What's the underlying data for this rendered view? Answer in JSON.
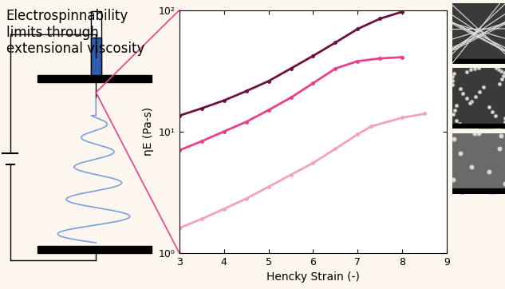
{
  "chart_data": {
    "type": "line",
    "annotation": "Electrospinnability\nlimits through\nextensional viscosity",
    "x_label": "Hencky Strain (-)",
    "y_label": "ηE (Pa-s)",
    "log": "y",
    "xlim": [
      3,
      9
    ],
    "xticks": [
      3,
      4,
      5,
      6,
      7,
      8,
      9
    ],
    "ylim": [
      1,
      100
    ],
    "yticks": [
      {
        "value": 1,
        "label": "10⁰"
      },
      {
        "value": 10,
        "label": "10¹"
      },
      {
        "value": 100,
        "label": "10²"
      }
    ],
    "grid": false,
    "series": [
      {
        "color": "#6b1040",
        "marker": "o",
        "line_style": "solid",
        "x": [
          3.0,
          3.5,
          4.0,
          4.5,
          5.0,
          5.5,
          6.0,
          6.5,
          7.0,
          7.5,
          8.0
        ],
        "values": [
          13.5,
          15.5,
          18,
          21.5,
          26,
          33,
          42,
          54,
          70,
          85,
          97
        ]
      },
      {
        "color": "#e8408a",
        "marker": "o",
        "line_style": "solid",
        "x": [
          3.0,
          3.5,
          4.0,
          4.5,
          5.0,
          5.5,
          6.0,
          6.5,
          7.0,
          7.5,
          8.0
        ],
        "values": [
          7,
          8.3,
          10,
          12,
          15,
          19,
          25,
          33,
          38,
          40,
          41
        ]
      },
      {
        "color": "#f4a0c0",
        "marker": "o",
        "line_style": "solid",
        "x": [
          3.0,
          3.5,
          4.0,
          4.5,
          5.0,
          5.5,
          6.0,
          6.5,
          7.0,
          7.3,
          8.0,
          8.5
        ],
        "values": [
          1.6,
          1.9,
          2.3,
          2.8,
          3.5,
          4.4,
          5.5,
          7.2,
          9.5,
          11,
          13,
          14
        ]
      }
    ]
  }
}
